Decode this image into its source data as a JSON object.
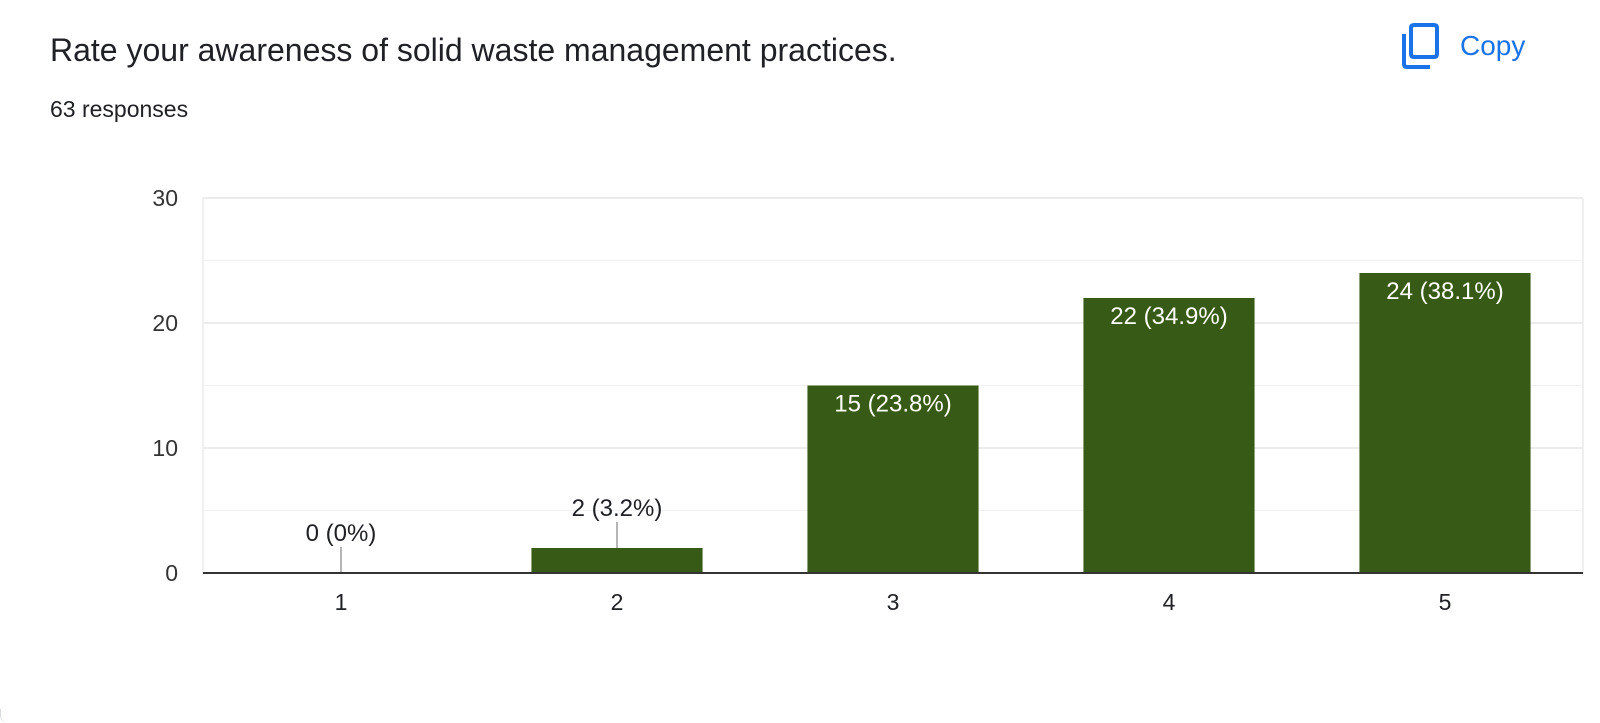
{
  "question": {
    "title": "Rate your awareness of solid waste management practices.",
    "responses": "63 responses"
  },
  "toolbar": {
    "copy_label": "Copy",
    "copy_icon": "copy-icon"
  },
  "colors": {
    "bar": "#375a16",
    "accent": "#1a73e8",
    "grid": "#ececec",
    "axis": "#333333"
  },
  "chart_data": {
    "type": "bar",
    "categories": [
      "1",
      "2",
      "3",
      "4",
      "5"
    ],
    "values": [
      0,
      2,
      15,
      22,
      24
    ],
    "data_labels": [
      "0 (0%)",
      "2 (3.2%)",
      "15 (23.8%)",
      "22 (34.9%)",
      "24 (38.1%)"
    ],
    "y_ticks": [
      "0",
      "10",
      "20",
      "30"
    ],
    "ylim": [
      0,
      30
    ],
    "grid": true,
    "title": "Rate your awareness of solid waste management practices.",
    "xlabel": "",
    "ylabel": ""
  }
}
